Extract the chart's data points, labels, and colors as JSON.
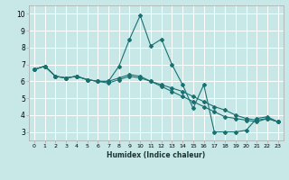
{
  "xlabel": "Humidex (Indice chaleur)",
  "ylabel": "",
  "background_color": "#c8e8e8",
  "grid_color": "#ffffff",
  "line_color": "#1a7070",
  "xlim": [
    -0.5,
    23.5
  ],
  "ylim": [
    2.5,
    10.5
  ],
  "xticks": [
    0,
    1,
    2,
    3,
    4,
    5,
    6,
    7,
    8,
    9,
    10,
    11,
    12,
    13,
    14,
    15,
    16,
    17,
    18,
    19,
    20,
    21,
    22,
    23
  ],
  "yticks": [
    3,
    4,
    5,
    6,
    7,
    8,
    9,
    10
  ],
  "series": [
    {
      "x": [
        0,
        1,
        2,
        3,
        4,
        5,
        6,
        7,
        8,
        9,
        10,
        11,
        12,
        13,
        14,
        15,
        16,
        17,
        18,
        19,
        20,
        21,
        22,
        23
      ],
      "y": [
        6.7,
        6.9,
        6.3,
        6.2,
        6.3,
        6.1,
        6.0,
        6.0,
        6.9,
        8.5,
        9.9,
        8.1,
        8.5,
        7.0,
        5.8,
        4.4,
        5.8,
        3.0,
        3.0,
        3.0,
        3.1,
        3.8,
        3.9,
        3.6
      ]
    },
    {
      "x": [
        0,
        1,
        2,
        3,
        4,
        5,
        6,
        7,
        8,
        9,
        10,
        11,
        12,
        13,
        14,
        15,
        16,
        17,
        18,
        19,
        20,
        21,
        22,
        23
      ],
      "y": [
        6.7,
        6.9,
        6.3,
        6.2,
        6.3,
        6.1,
        6.0,
        5.9,
        6.1,
        6.3,
        6.2,
        6.0,
        5.8,
        5.6,
        5.4,
        5.1,
        4.8,
        4.5,
        4.3,
        4.0,
        3.8,
        3.7,
        3.8,
        3.6
      ]
    },
    {
      "x": [
        0,
        1,
        2,
        3,
        4,
        5,
        6,
        7,
        8,
        9,
        10,
        11,
        12,
        13,
        14,
        15,
        16,
        17,
        18,
        19,
        20,
        21,
        22,
        23
      ],
      "y": [
        6.7,
        6.9,
        6.3,
        6.2,
        6.3,
        6.1,
        6.0,
        6.0,
        6.2,
        6.4,
        6.3,
        6.0,
        5.7,
        5.4,
        5.1,
        4.8,
        4.5,
        4.2,
        3.9,
        3.8,
        3.7,
        3.6,
        3.8,
        3.6
      ]
    }
  ]
}
